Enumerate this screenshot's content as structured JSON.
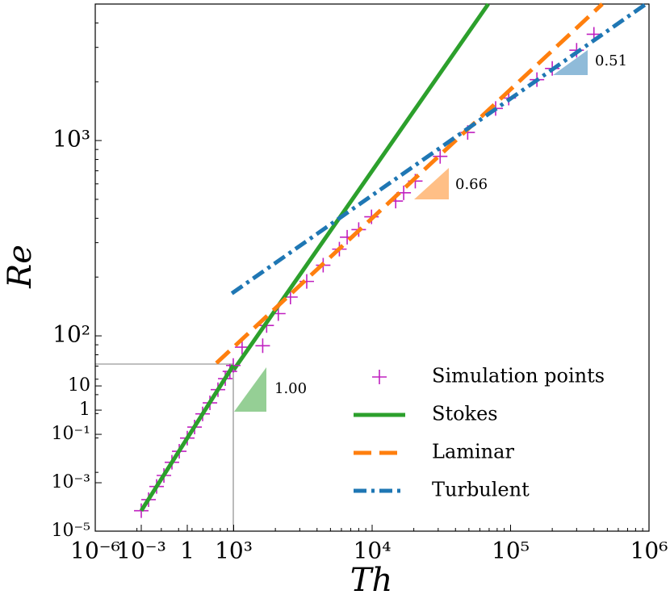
{
  "chart_data": [
    {
      "type": "scatter",
      "xlabel": "Th",
      "ylabel": "Re",
      "log_x": true,
      "log_y": true,
      "xlim": [
        100,
        1000000
      ],
      "ylim": [
        10,
        5000
      ],
      "xticks": [
        {
          "value": 1000,
          "label": "10³"
        },
        {
          "value": 10000,
          "label": "10⁴"
        },
        {
          "value": 100000,
          "label": "10⁵"
        },
        {
          "value": 1000000,
          "label": "10⁶"
        }
      ],
      "yticks": [
        {
          "value": 100,
          "label": "10²"
        },
        {
          "value": 1000,
          "label": "10³"
        }
      ],
      "legend": "lower right",
      "annotations": [
        "1.00",
        "0.66",
        "0.51"
      ],
      "series": [
        {
          "name": "Simulation points",
          "type": "scatter",
          "color": "#c020c0",
          "x": [
            1150,
            1620,
            1730,
            2100,
            2570,
            3370,
            4430,
            5800,
            6600,
            8000,
            9900,
            14800,
            16900,
            20500,
            31000,
            49000,
            78000,
            97000,
            155000,
            200000,
            300000,
            400000
          ],
          "values": [
            87.5,
            89,
            113,
            130,
            158,
            190,
            230,
            278,
            320,
            350,
            407,
            490,
            540,
            620,
            830,
            1100,
            1460,
            1650,
            2050,
            2340,
            2900,
            3500
          ]
        },
        {
          "name": "Stokes",
          "type": "line",
          "dash": "solid",
          "color": "#2ca02c",
          "x": [
            1000,
            69000
          ],
          "values": [
            67,
            5000
          ]
        },
        {
          "name": "Laminar",
          "type": "line",
          "dash": "dashed",
          "color": "#ff7f0e",
          "x": [
            750,
            460000
          ],
          "values": [
            72.5,
            5000
          ]
        },
        {
          "name": "Turbulent",
          "type": "line",
          "dash": "dashdot",
          "color": "#1f77b4",
          "x": [
            970,
            950000
          ],
          "values": [
            165,
            5000
          ]
        }
      ]
    },
    {
      "type": "scatter",
      "log_x": true,
      "log_y": true,
      "xlim": [
        1e-06,
        1000
      ],
      "ylim": [
        1e-05,
        80
      ],
      "xticks": [
        {
          "value": 1e-06,
          "label": "10⁻⁶"
        },
        {
          "value": 0.001,
          "label": "10⁻³"
        },
        1
      ],
      "yticks": [
        {
          "value": 1e-05,
          "label": "10⁻⁵"
        },
        {
          "value": 0.001,
          "label": "10⁻³"
        },
        {
          "value": 0.1,
          "label": "10⁻¹"
        },
        1,
        10
      ],
      "series": [
        {
          "type": "scatter",
          "color": "#c020c0",
          "x": [
            0.001,
            0.003,
            0.01,
            0.03,
            0.1,
            0.3,
            1,
            3,
            10,
            30,
            100,
            300,
            600,
            1000
          ],
          "values": [
            7e-05,
            0.0002,
            0.0007,
            0.002,
            0.007,
            0.02,
            0.07,
            0.2,
            0.7,
            2,
            7,
            20,
            40,
            70
          ]
        },
        {
          "type": "line",
          "dash": "solid",
          "color": "#2ca02c",
          "x": [
            0.001,
            1000
          ],
          "values": [
            7e-05,
            70
          ]
        }
      ]
    }
  ]
}
